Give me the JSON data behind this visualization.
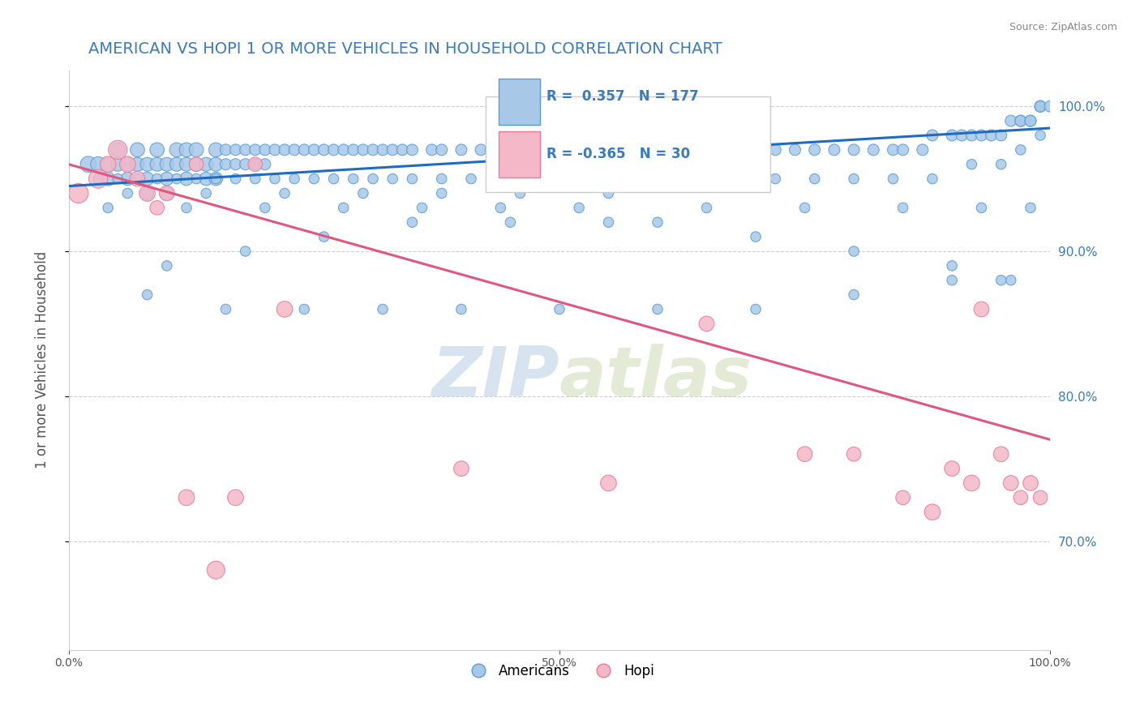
{
  "title": "AMERICAN VS HOPI 1 OR MORE VEHICLES IN HOUSEHOLD CORRELATION CHART",
  "source_text": "Source: ZipAtlas.com",
  "ylabel": "1 or more Vehicles in Household",
  "legend_blue_r": "0.357",
  "legend_blue_n": "177",
  "legend_pink_r": "-0.365",
  "legend_pink_n": "30",
  "legend_blue_label": "Americans",
  "legend_pink_label": "Hopi",
  "right_yticks": [
    0.7,
    0.8,
    0.9,
    1.0
  ],
  "right_yticklabels": [
    "70.0%",
    "80.0%",
    "90.0%",
    "100.0%"
  ],
  "watermark_zip": "ZIP",
  "watermark_atlas": "atlas",
  "blue_color": "#a8c8e8",
  "blue_edge_color": "#5b9bd5",
  "pink_color": "#f4b8c8",
  "pink_edge_color": "#e87a9a",
  "trendline_blue": "#1f6bbf",
  "trendline_pink": "#e05880",
  "background_color": "#ffffff",
  "grid_color": "#d0d0d0",
  "blue_scatter_x": [
    0.02,
    0.03,
    0.04,
    0.04,
    0.05,
    0.05,
    0.06,
    0.06,
    0.07,
    0.07,
    0.08,
    0.08,
    0.08,
    0.09,
    0.09,
    0.1,
    0.1,
    0.1,
    0.11,
    0.11,
    0.12,
    0.12,
    0.12,
    0.13,
    0.13,
    0.14,
    0.14,
    0.15,
    0.15,
    0.15,
    0.16,
    0.16,
    0.17,
    0.17,
    0.18,
    0.18,
    0.19,
    0.19,
    0.2,
    0.2,
    0.21,
    0.22,
    0.23,
    0.24,
    0.25,
    0.26,
    0.27,
    0.28,
    0.29,
    0.3,
    0.31,
    0.32,
    0.33,
    0.34,
    0.35,
    0.37,
    0.38,
    0.4,
    0.42,
    0.43,
    0.45,
    0.47,
    0.48,
    0.5,
    0.52,
    0.54,
    0.56,
    0.58,
    0.6,
    0.62,
    0.64,
    0.65,
    0.67,
    0.69,
    0.7,
    0.72,
    0.74,
    0.76,
    0.78,
    0.8,
    0.82,
    0.84,
    0.85,
    0.87,
    0.88,
    0.9,
    0.91,
    0.92,
    0.93,
    0.94,
    0.95,
    0.96,
    0.97,
    0.97,
    0.98,
    0.98,
    0.99,
    0.99,
    0.99,
    1.0,
    0.03,
    0.05,
    0.07,
    0.09,
    0.11,
    0.13,
    0.15,
    0.17,
    0.19,
    0.21,
    0.23,
    0.25,
    0.27,
    0.29,
    0.31,
    0.33,
    0.35,
    0.38,
    0.41,
    0.44,
    0.47,
    0.5,
    0.53,
    0.57,
    0.61,
    0.65,
    0.68,
    0.72,
    0.76,
    0.8,
    0.84,
    0.88,
    0.92,
    0.95,
    0.97,
    0.99,
    0.06,
    0.14,
    0.22,
    0.3,
    0.38,
    0.46,
    0.55,
    0.65,
    0.75,
    0.85,
    0.93,
    0.98,
    0.04,
    0.12,
    0.2,
    0.28,
    0.36,
    0.44,
    0.52,
    0.6,
    0.7,
    0.8,
    0.9,
    0.96,
    0.08,
    0.16,
    0.24,
    0.32,
    0.4,
    0.5,
    0.6,
    0.7,
    0.8,
    0.9,
    0.95,
    0.1,
    0.18,
    0.26,
    0.35,
    0.45,
    0.55
  ],
  "blue_scatter_y": [
    0.96,
    0.96,
    0.96,
    0.95,
    0.97,
    0.96,
    0.96,
    0.95,
    0.97,
    0.96,
    0.96,
    0.95,
    0.94,
    0.97,
    0.96,
    0.96,
    0.95,
    0.94,
    0.97,
    0.96,
    0.97,
    0.96,
    0.95,
    0.97,
    0.96,
    0.96,
    0.95,
    0.97,
    0.96,
    0.95,
    0.97,
    0.96,
    0.97,
    0.96,
    0.97,
    0.96,
    0.97,
    0.96,
    0.97,
    0.96,
    0.97,
    0.97,
    0.97,
    0.97,
    0.97,
    0.97,
    0.97,
    0.97,
    0.97,
    0.97,
    0.97,
    0.97,
    0.97,
    0.97,
    0.97,
    0.97,
    0.97,
    0.97,
    0.97,
    0.97,
    0.97,
    0.97,
    0.97,
    0.97,
    0.97,
    0.97,
    0.97,
    0.97,
    0.97,
    0.97,
    0.97,
    0.97,
    0.97,
    0.97,
    0.97,
    0.97,
    0.97,
    0.97,
    0.97,
    0.97,
    0.97,
    0.97,
    0.97,
    0.97,
    0.98,
    0.98,
    0.98,
    0.98,
    0.98,
    0.98,
    0.98,
    0.99,
    0.99,
    0.99,
    0.99,
    0.99,
    1.0,
    1.0,
    1.0,
    1.0,
    0.95,
    0.95,
    0.95,
    0.95,
    0.95,
    0.95,
    0.95,
    0.95,
    0.95,
    0.95,
    0.95,
    0.95,
    0.95,
    0.95,
    0.95,
    0.95,
    0.95,
    0.95,
    0.95,
    0.95,
    0.95,
    0.95,
    0.95,
    0.95,
    0.95,
    0.95,
    0.95,
    0.95,
    0.95,
    0.95,
    0.95,
    0.95,
    0.96,
    0.96,
    0.97,
    0.98,
    0.94,
    0.94,
    0.94,
    0.94,
    0.94,
    0.94,
    0.94,
    0.93,
    0.93,
    0.93,
    0.93,
    0.93,
    0.93,
    0.93,
    0.93,
    0.93,
    0.93,
    0.93,
    0.93,
    0.92,
    0.91,
    0.9,
    0.89,
    0.88,
    0.87,
    0.86,
    0.86,
    0.86,
    0.86,
    0.86,
    0.86,
    0.86,
    0.87,
    0.88,
    0.88,
    0.89,
    0.9,
    0.91,
    0.92,
    0.92,
    0.92
  ],
  "blue_scatter_size": [
    200,
    180,
    160,
    150,
    160,
    150,
    150,
    140,
    160,
    150,
    150,
    140,
    130,
    160,
    150,
    150,
    140,
    130,
    160,
    150,
    160,
    150,
    140,
    160,
    150,
    150,
    140,
    160,
    150,
    140,
    100,
    100,
    100,
    100,
    100,
    100,
    100,
    100,
    100,
    100,
    100,
    100,
    100,
    100,
    100,
    100,
    100,
    100,
    100,
    100,
    100,
    100,
    100,
    100,
    100,
    100,
    100,
    100,
    100,
    100,
    100,
    100,
    100,
    100,
    100,
    100,
    100,
    100,
    100,
    100,
    100,
    100,
    100,
    100,
    100,
    100,
    100,
    100,
    100,
    100,
    100,
    100,
    100,
    100,
    100,
    100,
    100,
    100,
    100,
    100,
    100,
    100,
    100,
    100,
    100,
    100,
    100,
    100,
    100,
    100,
    80,
    80,
    80,
    80,
    80,
    80,
    80,
    80,
    80,
    80,
    80,
    80,
    80,
    80,
    80,
    80,
    80,
    80,
    80,
    80,
    80,
    80,
    80,
    80,
    80,
    80,
    80,
    80,
    80,
    80,
    80,
    80,
    80,
    80,
    80,
    80,
    80,
    80,
    80,
    80,
    80,
    80,
    80,
    80,
    80,
    80,
    80,
    80,
    80,
    80,
    80,
    80,
    80,
    80,
    80,
    80,
    80,
    80,
    80,
    80,
    80,
    80,
    80,
    80,
    80,
    80,
    80,
    80,
    80,
    80,
    80,
    80,
    80,
    80,
    80,
    80,
    80
  ],
  "pink_scatter_x": [
    0.01,
    0.03,
    0.04,
    0.05,
    0.06,
    0.07,
    0.08,
    0.09,
    0.1,
    0.12,
    0.13,
    0.15,
    0.17,
    0.19,
    0.22,
    0.4,
    0.55,
    0.65,
    0.75,
    0.8,
    0.85,
    0.88,
    0.9,
    0.92,
    0.93,
    0.95,
    0.96,
    0.97,
    0.98,
    0.99
  ],
  "pink_scatter_y": [
    0.94,
    0.95,
    0.96,
    0.97,
    0.96,
    0.95,
    0.94,
    0.93,
    0.94,
    0.73,
    0.96,
    0.68,
    0.73,
    0.96,
    0.86,
    0.75,
    0.74,
    0.85,
    0.76,
    0.76,
    0.73,
    0.72,
    0.75,
    0.74,
    0.86,
    0.76,
    0.74,
    0.73,
    0.74,
    0.73
  ],
  "pink_scatter_size": [
    300,
    280,
    200,
    280,
    200,
    180,
    200,
    160,
    180,
    200,
    160,
    250,
    200,
    160,
    200,
    180,
    200,
    180,
    180,
    160,
    160,
    200,
    180,
    200,
    180,
    180,
    180,
    160,
    180,
    160
  ]
}
